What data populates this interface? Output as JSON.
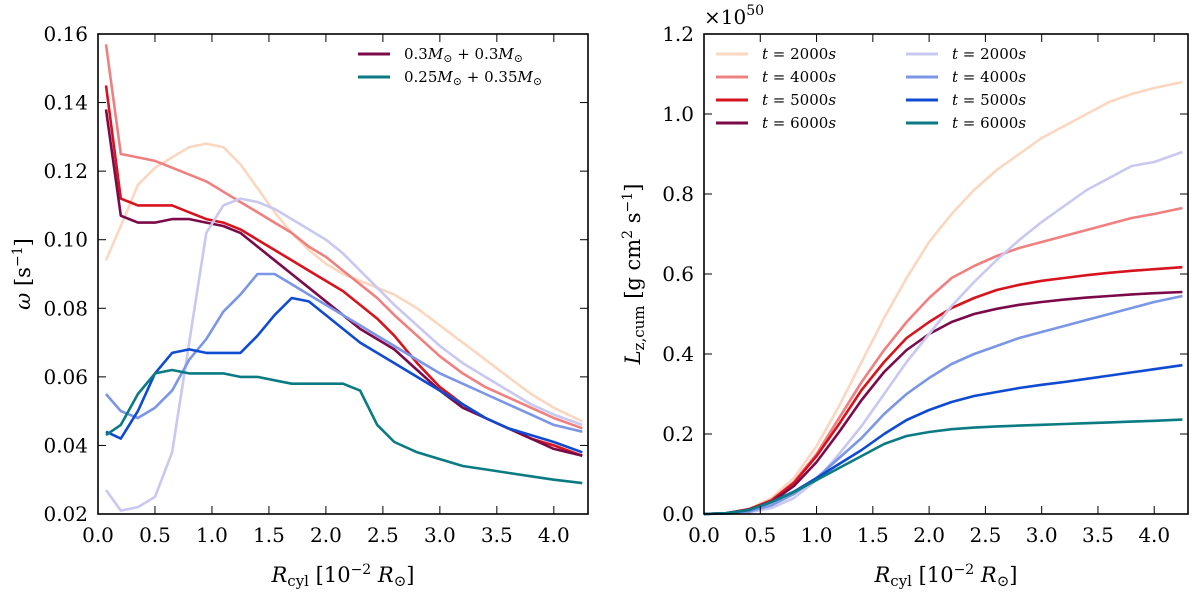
{
  "chart_data": [
    {
      "type": "line",
      "panel": "left",
      "xlabel": "R_cyl [10^-2 R_⊙]",
      "ylabel": "ω [s^-1]",
      "xlim": [
        0.0,
        4.3
      ],
      "ylim": [
        0.02,
        0.16
      ],
      "xticks": [
        0.0,
        0.5,
        1.0,
        1.5,
        2.0,
        2.5,
        3.0,
        3.5,
        4.0
      ],
      "xtick_labels": [
        "0.0",
        "0.5",
        "1.0",
        "1.5",
        "2.0",
        "2.5",
        "3.0",
        "3.5",
        "4.0"
      ],
      "yticks": [
        0.02,
        0.04,
        0.06,
        0.08,
        0.1,
        0.12,
        0.14,
        0.16
      ],
      "ytick_labels": [
        "0.02",
        "0.04",
        "0.06",
        "0.08",
        "0.10",
        "0.12",
        "0.14",
        "0.16"
      ],
      "legend": {
        "placement": "top-right",
        "entries": [
          {
            "label_main": "0.3M",
            "label_sub": "⊙",
            "label_mid": " + 0.3M",
            "label_sub2": "⊙",
            "color": "#7b0a4a"
          },
          {
            "label_main": "0.25M",
            "label_sub": "⊙",
            "label_mid": " + 0.35M",
            "label_sub2": "⊙",
            "color": "#0a7b83"
          }
        ]
      },
      "series": [
        {
          "name": "0.3+0.3 t=2000s",
          "color": "#fbd7c0",
          "x": [
            0.07,
            0.2,
            0.35,
            0.5,
            0.65,
            0.8,
            0.95,
            1.1,
            1.25,
            1.4,
            1.55,
            1.7,
            1.85,
            2.0,
            2.15,
            2.3,
            2.45,
            2.6,
            2.8,
            3.0,
            3.2,
            3.4,
            3.6,
            3.8,
            4.0,
            4.25
          ],
          "y": [
            0.094,
            0.104,
            0.116,
            0.121,
            0.124,
            0.127,
            0.128,
            0.127,
            0.122,
            0.115,
            0.108,
            0.102,
            0.097,
            0.093,
            0.09,
            0.088,
            0.086,
            0.084,
            0.08,
            0.075,
            0.07,
            0.065,
            0.06,
            0.055,
            0.051,
            0.047
          ]
        },
        {
          "name": "0.3+0.3 t=4000s",
          "color": "#f08080",
          "x": [
            0.07,
            0.2,
            0.35,
            0.5,
            0.65,
            0.8,
            0.95,
            1.1,
            1.25,
            1.4,
            1.55,
            1.7,
            1.85,
            2.0,
            2.15,
            2.3,
            2.45,
            2.6,
            2.8,
            3.0,
            3.2,
            3.4,
            3.6,
            3.8,
            4.0,
            4.25
          ],
          "y": [
            0.157,
            0.125,
            0.124,
            0.123,
            0.121,
            0.119,
            0.117,
            0.114,
            0.111,
            0.108,
            0.105,
            0.102,
            0.098,
            0.095,
            0.091,
            0.087,
            0.083,
            0.078,
            0.072,
            0.066,
            0.061,
            0.057,
            0.054,
            0.051,
            0.048,
            0.045
          ]
        },
        {
          "name": "0.3+0.3 t=5000s",
          "color": "#d7141e",
          "x": [
            0.07,
            0.2,
            0.35,
            0.5,
            0.65,
            0.8,
            0.95,
            1.1,
            1.25,
            1.4,
            1.55,
            1.7,
            1.85,
            2.0,
            2.15,
            2.3,
            2.45,
            2.6,
            2.8,
            3.0,
            3.2,
            3.4,
            3.6,
            3.8,
            4.0,
            4.25
          ],
          "y": [
            0.145,
            0.112,
            0.11,
            0.11,
            0.11,
            0.108,
            0.106,
            0.105,
            0.103,
            0.1,
            0.097,
            0.094,
            0.091,
            0.088,
            0.085,
            0.081,
            0.077,
            0.072,
            0.064,
            0.057,
            0.052,
            0.048,
            0.045,
            0.042,
            0.04,
            0.037
          ]
        },
        {
          "name": "0.3+0.3 t=6000s",
          "color": "#7b0a4a",
          "x": [
            0.07,
            0.2,
            0.35,
            0.5,
            0.65,
            0.8,
            0.95,
            1.1,
            1.25,
            1.4,
            1.55,
            1.7,
            1.85,
            2.0,
            2.15,
            2.3,
            2.45,
            2.6,
            2.8,
            3.0,
            3.2,
            3.4,
            3.6,
            3.8,
            4.0,
            4.25
          ],
          "y": [
            0.138,
            0.107,
            0.105,
            0.105,
            0.106,
            0.106,
            0.105,
            0.104,
            0.102,
            0.098,
            0.094,
            0.09,
            0.086,
            0.082,
            0.078,
            0.074,
            0.071,
            0.068,
            0.062,
            0.056,
            0.051,
            0.048,
            0.045,
            0.042,
            0.039,
            0.037
          ]
        },
        {
          "name": "0.25+0.35 t=2000s",
          "color": "#c8c8f0",
          "x": [
            0.07,
            0.2,
            0.35,
            0.5,
            0.65,
            0.8,
            0.95,
            1.1,
            1.25,
            1.4,
            1.55,
            1.7,
            1.85,
            2.0,
            2.15,
            2.3,
            2.45,
            2.6,
            2.8,
            3.0,
            3.2,
            3.4,
            3.6,
            3.8,
            4.0,
            4.25
          ],
          "y": [
            0.027,
            0.021,
            0.022,
            0.025,
            0.038,
            0.07,
            0.102,
            0.11,
            0.112,
            0.111,
            0.109,
            0.106,
            0.103,
            0.1,
            0.096,
            0.091,
            0.086,
            0.081,
            0.075,
            0.069,
            0.064,
            0.06,
            0.056,
            0.052,
            0.049,
            0.046
          ]
        },
        {
          "name": "0.25+0.35 t=4000s",
          "color": "#7b96e6",
          "x": [
            0.07,
            0.2,
            0.35,
            0.5,
            0.65,
            0.8,
            0.95,
            1.1,
            1.25,
            1.4,
            1.55,
            1.7,
            1.85,
            2.0,
            2.15,
            2.3,
            2.45,
            2.6,
            2.8,
            3.0,
            3.2,
            3.4,
            3.6,
            3.8,
            4.0,
            4.25
          ],
          "y": [
            0.055,
            0.05,
            0.048,
            0.051,
            0.056,
            0.065,
            0.071,
            0.079,
            0.084,
            0.09,
            0.09,
            0.087,
            0.084,
            0.081,
            0.078,
            0.075,
            0.072,
            0.069,
            0.065,
            0.061,
            0.058,
            0.055,
            0.052,
            0.049,
            0.046,
            0.044
          ]
        },
        {
          "name": "0.25+0.35 t=5000s",
          "color": "#0f4bd2",
          "x": [
            0.07,
            0.2,
            0.35,
            0.5,
            0.65,
            0.8,
            0.95,
            1.1,
            1.25,
            1.4,
            1.55,
            1.7,
            1.85,
            2.0,
            2.15,
            2.3,
            2.45,
            2.6,
            2.8,
            3.0,
            3.2,
            3.4,
            3.6,
            3.8,
            4.0,
            4.25
          ],
          "y": [
            0.044,
            0.042,
            0.05,
            0.061,
            0.067,
            0.068,
            0.067,
            0.067,
            0.067,
            0.072,
            0.078,
            0.083,
            0.082,
            0.078,
            0.074,
            0.07,
            0.067,
            0.064,
            0.06,
            0.056,
            0.052,
            0.048,
            0.045,
            0.043,
            0.041,
            0.038
          ]
        },
        {
          "name": "0.25+0.35 t=6000s",
          "color": "#0a7b83",
          "x": [
            0.07,
            0.2,
            0.35,
            0.5,
            0.65,
            0.8,
            0.95,
            1.1,
            1.25,
            1.4,
            1.55,
            1.7,
            1.85,
            2.0,
            2.15,
            2.3,
            2.45,
            2.6,
            2.8,
            3.0,
            3.2,
            3.4,
            3.6,
            3.8,
            4.0,
            4.25
          ],
          "y": [
            0.043,
            0.046,
            0.055,
            0.061,
            0.062,
            0.061,
            0.061,
            0.061,
            0.06,
            0.06,
            0.059,
            0.058,
            0.058,
            0.058,
            0.058,
            0.056,
            0.046,
            0.041,
            0.038,
            0.036,
            0.034,
            0.033,
            0.032,
            0.031,
            0.03,
            0.029
          ]
        }
      ]
    },
    {
      "type": "line",
      "panel": "right",
      "xlabel": "R_cyl [10^-2 R_⊙]",
      "ylabel": "L_z,cum [g cm^2 s^-1]",
      "y_offset_label": "×10",
      "y_offset_exponent": "50",
      "xlim": [
        0.0,
        4.3
      ],
      "ylim": [
        0.0,
        1.2
      ],
      "xticks": [
        0.0,
        0.5,
        1.0,
        1.5,
        2.0,
        2.5,
        3.0,
        3.5,
        4.0
      ],
      "xtick_labels": [
        "0.0",
        "0.5",
        "1.0",
        "1.5",
        "2.0",
        "2.5",
        "3.0",
        "3.5",
        "4.0"
      ],
      "yticks": [
        0.0,
        0.2,
        0.4,
        0.6,
        0.8,
        1.0,
        1.2
      ],
      "ytick_labels": [
        "0.0",
        "0.2",
        "0.4",
        "0.6",
        "0.8",
        "1.0",
        "1.2"
      ],
      "legend": {
        "placement": "top-left",
        "columns": 2,
        "entries": [
          {
            "label_var": "t",
            "label_rest": " = 2000",
            "label_unit": "s",
            "color": "#fbd7c0"
          },
          {
            "label_var": "t",
            "label_rest": " = 4000",
            "label_unit": "s",
            "color": "#f08080"
          },
          {
            "label_var": "t",
            "label_rest": " = 5000",
            "label_unit": "s",
            "color": "#d7141e"
          },
          {
            "label_var": "t",
            "label_rest": " = 6000",
            "label_unit": "s",
            "color": "#7b0a4a"
          },
          {
            "label_var": "t",
            "label_rest": " = 2000",
            "label_unit": "s",
            "color": "#c8c8f0"
          },
          {
            "label_var": "t",
            "label_rest": " = 4000",
            "label_unit": "s",
            "color": "#7b96e6"
          },
          {
            "label_var": "t",
            "label_rest": " = 5000",
            "label_unit": "s",
            "color": "#0f4bd2"
          },
          {
            "label_var": "t",
            "label_rest": " = 6000",
            "label_unit": "s",
            "color": "#0a7b83"
          }
        ]
      },
      "series": [
        {
          "name": "0.3+0.3 t=2000s",
          "color": "#fbd7c0",
          "x": [
            0.0,
            0.2,
            0.4,
            0.6,
            0.8,
            1.0,
            1.2,
            1.4,
            1.6,
            1.8,
            2.0,
            2.2,
            2.4,
            2.6,
            2.8,
            3.0,
            3.2,
            3.4,
            3.6,
            3.8,
            4.0,
            4.25
          ],
          "y": [
            0.0,
            0.002,
            0.012,
            0.04,
            0.09,
            0.17,
            0.27,
            0.38,
            0.49,
            0.59,
            0.68,
            0.75,
            0.81,
            0.86,
            0.9,
            0.94,
            0.97,
            1.0,
            1.03,
            1.05,
            1.065,
            1.08
          ]
        },
        {
          "name": "0.3+0.3 t=4000s",
          "color": "#f08080",
          "x": [
            0.0,
            0.2,
            0.4,
            0.6,
            0.8,
            1.0,
            1.2,
            1.4,
            1.6,
            1.8,
            2.0,
            2.2,
            2.4,
            2.6,
            2.8,
            3.0,
            3.2,
            3.4,
            3.6,
            3.8,
            4.0,
            4.25
          ],
          "y": [
            0.0,
            0.002,
            0.012,
            0.035,
            0.08,
            0.15,
            0.24,
            0.33,
            0.41,
            0.48,
            0.54,
            0.59,
            0.62,
            0.645,
            0.665,
            0.68,
            0.695,
            0.71,
            0.725,
            0.74,
            0.75,
            0.765
          ]
        },
        {
          "name": "0.3+0.3 t=5000s",
          "color": "#d7141e",
          "x": [
            0.0,
            0.2,
            0.4,
            0.6,
            0.8,
            1.0,
            1.2,
            1.4,
            1.6,
            1.8,
            2.0,
            2.2,
            2.4,
            2.6,
            2.8,
            3.0,
            3.2,
            3.4,
            3.6,
            3.8,
            4.0,
            4.25
          ],
          "y": [
            0.0,
            0.002,
            0.012,
            0.034,
            0.078,
            0.145,
            0.225,
            0.31,
            0.38,
            0.44,
            0.48,
            0.515,
            0.54,
            0.56,
            0.573,
            0.583,
            0.59,
            0.597,
            0.603,
            0.608,
            0.612,
            0.617
          ]
        },
        {
          "name": "0.3+0.3 t=6000s",
          "color": "#7b0a4a",
          "x": [
            0.0,
            0.2,
            0.4,
            0.6,
            0.8,
            1.0,
            1.2,
            1.4,
            1.6,
            1.8,
            2.0,
            2.2,
            2.4,
            2.6,
            2.8,
            3.0,
            3.2,
            3.4,
            3.6,
            3.8,
            4.0,
            4.25
          ],
          "y": [
            0.0,
            0.002,
            0.011,
            0.03,
            0.07,
            0.13,
            0.205,
            0.285,
            0.355,
            0.41,
            0.45,
            0.48,
            0.5,
            0.513,
            0.523,
            0.53,
            0.536,
            0.541,
            0.545,
            0.549,
            0.552,
            0.555
          ]
        },
        {
          "name": "0.25+0.35 t=2000s",
          "color": "#c8c8f0",
          "x": [
            0.0,
            0.2,
            0.4,
            0.6,
            0.8,
            1.0,
            1.2,
            1.4,
            1.6,
            1.8,
            2.0,
            2.2,
            2.4,
            2.6,
            2.8,
            3.0,
            3.2,
            3.4,
            3.6,
            3.8,
            4.0,
            4.25
          ],
          "y": [
            0.0,
            0.001,
            0.004,
            0.015,
            0.04,
            0.085,
            0.15,
            0.22,
            0.3,
            0.38,
            0.45,
            0.52,
            0.58,
            0.635,
            0.685,
            0.73,
            0.77,
            0.81,
            0.84,
            0.87,
            0.88,
            0.905
          ]
        },
        {
          "name": "0.25+0.35 t=4000s",
          "color": "#7b96e6",
          "x": [
            0.0,
            0.2,
            0.4,
            0.6,
            0.8,
            1.0,
            1.2,
            1.4,
            1.6,
            1.8,
            2.0,
            2.2,
            2.4,
            2.6,
            2.8,
            3.0,
            3.2,
            3.4,
            3.6,
            3.8,
            4.0,
            4.25
          ],
          "y": [
            0.0,
            0.001,
            0.006,
            0.022,
            0.05,
            0.09,
            0.14,
            0.19,
            0.25,
            0.3,
            0.34,
            0.375,
            0.4,
            0.42,
            0.44,
            0.455,
            0.47,
            0.485,
            0.5,
            0.515,
            0.53,
            0.545
          ]
        },
        {
          "name": "0.25+0.35 t=5000s",
          "color": "#0f4bd2",
          "x": [
            0.0,
            0.2,
            0.4,
            0.6,
            0.8,
            1.0,
            1.2,
            1.4,
            1.6,
            1.8,
            2.0,
            2.2,
            2.4,
            2.6,
            2.8,
            3.0,
            3.2,
            3.4,
            3.6,
            3.8,
            4.0,
            4.25
          ],
          "y": [
            0.0,
            0.002,
            0.01,
            0.03,
            0.056,
            0.09,
            0.125,
            0.16,
            0.2,
            0.235,
            0.26,
            0.28,
            0.295,
            0.305,
            0.315,
            0.323,
            0.33,
            0.338,
            0.346,
            0.354,
            0.362,
            0.372
          ]
        },
        {
          "name": "0.25+0.35 t=6000s",
          "color": "#0a7b83",
          "x": [
            0.0,
            0.2,
            0.4,
            0.6,
            0.8,
            1.0,
            1.2,
            1.4,
            1.6,
            1.8,
            2.0,
            2.2,
            2.4,
            2.6,
            2.8,
            3.0,
            3.2,
            3.4,
            3.6,
            3.8,
            4.0,
            4.25
          ],
          "y": [
            0.0,
            0.002,
            0.01,
            0.03,
            0.055,
            0.085,
            0.115,
            0.145,
            0.175,
            0.195,
            0.205,
            0.212,
            0.216,
            0.219,
            0.221,
            0.223,
            0.225,
            0.227,
            0.229,
            0.231,
            0.233,
            0.236
          ]
        }
      ]
    }
  ]
}
